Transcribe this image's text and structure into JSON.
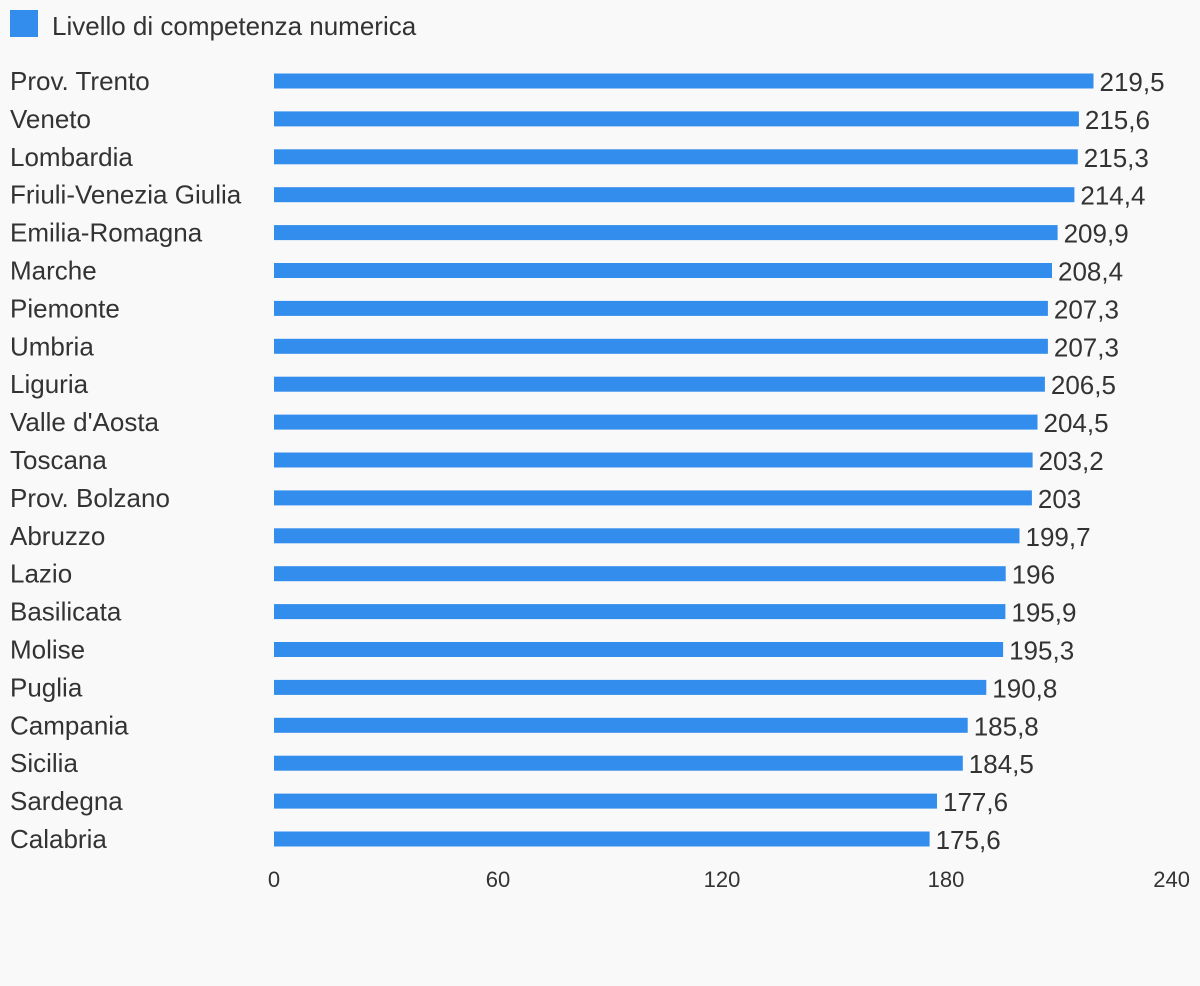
{
  "chart_data": {
    "type": "bar",
    "orientation": "horizontal",
    "series": [
      {
        "name": "Livello di competenza numerica",
        "values": [
          219.5,
          215.6,
          215.3,
          214.4,
          209.9,
          208.4,
          207.3,
          207.3,
          206.5,
          204.5,
          203.2,
          203,
          199.7,
          196,
          195.9,
          195.3,
          190.8,
          185.8,
          184.5,
          177.6,
          175.6
        ]
      }
    ],
    "categories": [
      "Prov. Trento",
      "Veneto",
      "Lombardia",
      "Friuli-Venezia Giulia",
      "Emilia-Romagna",
      "Marche",
      "Piemonte",
      "Umbria",
      "Liguria",
      "Valle d'Aosta",
      "Toscana",
      "Prov. Bolzano",
      "Abruzzo",
      "Lazio",
      "Basilicata",
      "Molise",
      "Puglia",
      "Campania",
      "Sicilia",
      "Sardegna",
      "Calabria"
    ],
    "value_labels": [
      "219,5",
      "215,6",
      "215,3",
      "214,4",
      "209,9",
      "208,4",
      "207,3",
      "207,3",
      "206,5",
      "204,5",
      "203,2",
      "203",
      "199,7",
      "196",
      "195,9",
      "195,3",
      "190,8",
      "185,8",
      "184,5",
      "177,6",
      "175,6"
    ],
    "xlim": [
      0,
      240
    ],
    "xticks": [
      "0",
      "60",
      "120",
      "180",
      "240"
    ],
    "xtick_values": [
      0,
      60,
      120,
      180,
      240
    ],
    "legend_position": "top-left",
    "grid": false,
    "colors": {
      "bar": "#338ded",
      "text": "#333333",
      "background": "#f9f9f9"
    }
  }
}
